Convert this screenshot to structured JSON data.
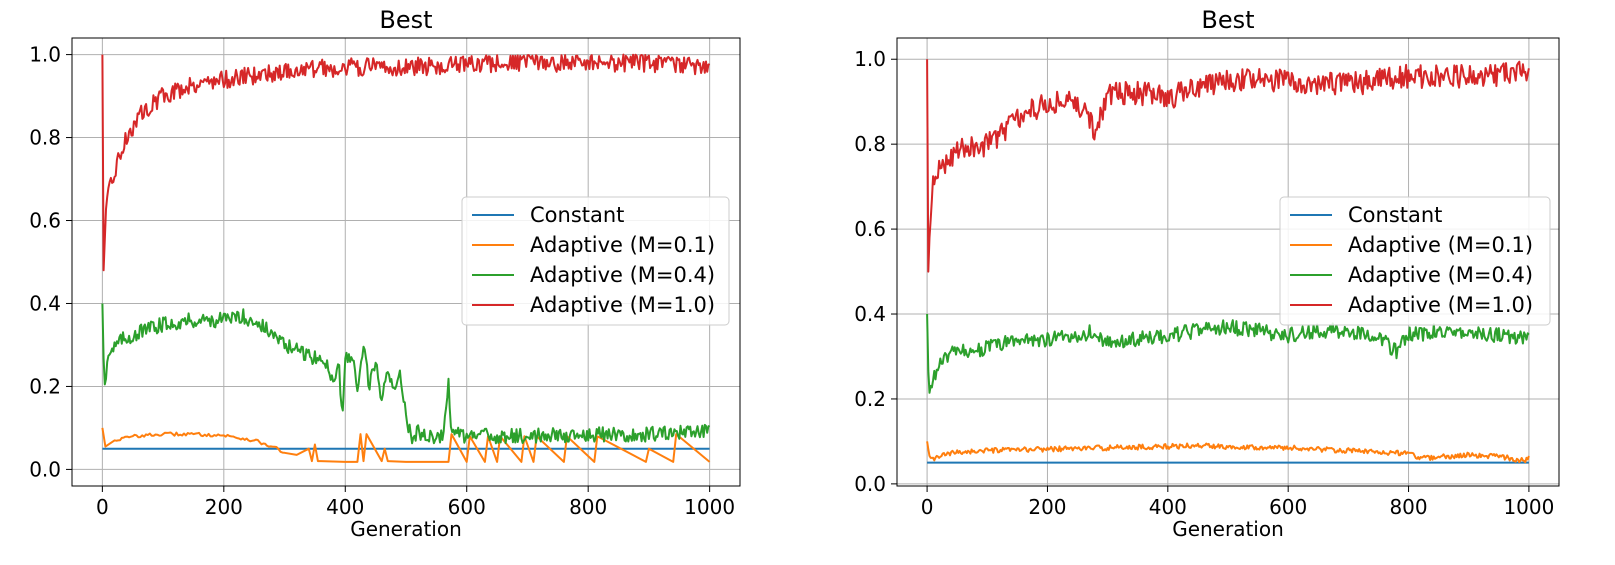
{
  "chart_data": [
    {
      "type": "line",
      "title": "Best",
      "xlabel": "Generation",
      "ylabel": "",
      "xlim": [
        -50,
        1050
      ],
      "ylim": [
        -0.04,
        1.04
      ],
      "xticks": [
        "0",
        "200",
        "400",
        "600",
        "800",
        "1000"
      ],
      "yticks": [
        "0.0",
        "0.2",
        "0.4",
        "0.6",
        "0.8",
        "1.0"
      ],
      "grid": true,
      "legend": "center-right",
      "series": [
        {
          "name": "Constant",
          "color": "#1f77b4",
          "x": [
            0,
            1000
          ],
          "y": [
            0.05,
            0.05
          ]
        },
        {
          "name": "Adaptive (M=0.1)",
          "color": "#ff7f0e",
          "x": [
            0,
            5,
            20,
            50,
            100,
            150,
            200,
            250,
            280,
            300,
            320,
            340,
            345,
            350,
            355,
            360,
            400,
            420,
            425,
            430,
            435,
            460,
            465,
            470,
            500,
            570,
            575,
            600,
            605,
            630,
            635,
            650,
            655,
            690,
            695,
            710,
            715,
            760,
            765,
            810,
            815,
            895,
            900,
            940,
            945,
            1000
          ],
          "y": [
            0.1,
            0.055,
            0.07,
            0.08,
            0.085,
            0.085,
            0.082,
            0.07,
            0.055,
            0.04,
            0.035,
            0.05,
            0.02,
            0.06,
            0.02,
            0.02,
            0.018,
            0.018,
            0.085,
            0.02,
            0.085,
            0.02,
            0.05,
            0.02,
            0.018,
            0.018,
            0.085,
            0.018,
            0.08,
            0.018,
            0.08,
            0.018,
            0.08,
            0.018,
            0.08,
            0.018,
            0.08,
            0.018,
            0.08,
            0.018,
            0.08,
            0.018,
            0.05,
            0.018,
            0.085,
            0.018
          ]
        },
        {
          "name": "Adaptive (M=0.4)",
          "color": "#2ca02c",
          "x": [
            0,
            3,
            10,
            30,
            60,
            100,
            150,
            200,
            230,
            260,
            300,
            330,
            350,
            370,
            380,
            390,
            395,
            400,
            410,
            420,
            430,
            440,
            450,
            460,
            470,
            480,
            490,
            500,
            510,
            520,
            540,
            560,
            570,
            575,
            580,
            600,
            700,
            800,
            900,
            1000
          ],
          "y": [
            0.4,
            0.2,
            0.28,
            0.31,
            0.33,
            0.35,
            0.36,
            0.36,
            0.37,
            0.35,
            0.3,
            0.28,
            0.27,
            0.25,
            0.22,
            0.25,
            0.12,
            0.26,
            0.28,
            0.19,
            0.3,
            0.2,
            0.26,
            0.16,
            0.25,
            0.19,
            0.24,
            0.12,
            0.08,
            0.09,
            0.08,
            0.08,
            0.21,
            0.09,
            0.085,
            0.08,
            0.08,
            0.085,
            0.085,
            0.09
          ]
        },
        {
          "name": "Adaptive (M=1.0)",
          "color": "#d62728",
          "x": [
            0,
            2,
            5,
            10,
            20,
            40,
            60,
            80,
            100,
            150,
            200,
            250,
            300,
            400,
            500,
            600,
            700,
            800,
            900,
            1000
          ],
          "y": [
            1.0,
            0.48,
            0.6,
            0.66,
            0.72,
            0.8,
            0.85,
            0.88,
            0.9,
            0.93,
            0.94,
            0.95,
            0.96,
            0.97,
            0.97,
            0.975,
            0.98,
            0.98,
            0.98,
            0.97
          ]
        }
      ]
    },
    {
      "type": "line",
      "title": "Best",
      "xlabel": "Generation",
      "ylabel": "",
      "xlim": [
        -50,
        1050
      ],
      "ylim": [
        -0.005,
        1.05
      ],
      "xticks": [
        "0",
        "200",
        "400",
        "600",
        "800",
        "1000"
      ],
      "yticks": [
        "0.0",
        "0.2",
        "0.4",
        "0.6",
        "0.8",
        "1.0"
      ],
      "grid": true,
      "legend": "center-right",
      "series": [
        {
          "name": "Constant",
          "color": "#1f77b4",
          "x": [
            0,
            1000
          ],
          "y": [
            0.05,
            0.05
          ]
        },
        {
          "name": "Adaptive (M=0.1)",
          "color": "#ff7f0e",
          "x": [
            0,
            5,
            20,
            50,
            100,
            200,
            300,
            400,
            450,
            500,
            600,
            700,
            750,
            800,
            820,
            900,
            950,
            990,
            1000
          ],
          "y": [
            0.1,
            0.055,
            0.065,
            0.075,
            0.078,
            0.082,
            0.085,
            0.088,
            0.09,
            0.088,
            0.085,
            0.078,
            0.075,
            0.072,
            0.06,
            0.068,
            0.065,
            0.055,
            0.06
          ]
        },
        {
          "name": "Adaptive (M=0.4)",
          "color": "#2ca02c",
          "x": [
            0,
            3,
            10,
            30,
            50,
            100,
            150,
            200,
            250,
            280,
            300,
            350,
            400,
            450,
            500,
            550,
            600,
            650,
            700,
            750,
            780,
            800,
            850,
            900,
            950,
            1000
          ],
          "y": [
            0.4,
            0.2,
            0.25,
            0.3,
            0.31,
            0.32,
            0.34,
            0.34,
            0.35,
            0.36,
            0.33,
            0.34,
            0.35,
            0.36,
            0.37,
            0.36,
            0.35,
            0.36,
            0.36,
            0.35,
            0.31,
            0.35,
            0.36,
            0.36,
            0.35,
            0.34
          ]
        },
        {
          "name": "Adaptive (M=1.0)",
          "color": "#d62728",
          "x": [
            0,
            2,
            5,
            10,
            20,
            50,
            100,
            150,
            200,
            250,
            280,
            300,
            350,
            400,
            450,
            500,
            600,
            700,
            800,
            900,
            1000
          ],
          "y": [
            1.0,
            0.5,
            0.6,
            0.7,
            0.74,
            0.79,
            0.8,
            0.86,
            0.9,
            0.9,
            0.83,
            0.92,
            0.92,
            0.91,
            0.93,
            0.95,
            0.95,
            0.94,
            0.96,
            0.96,
            0.97
          ]
        }
      ]
    }
  ]
}
